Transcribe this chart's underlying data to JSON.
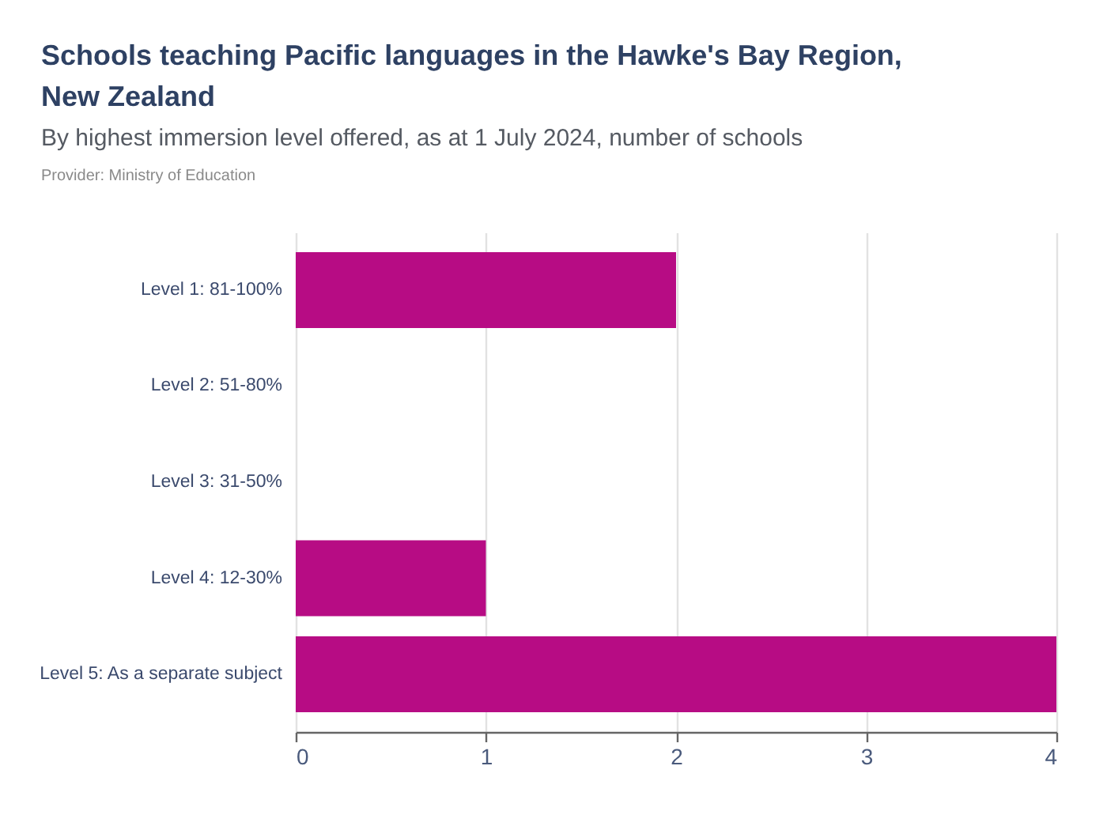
{
  "chart_data": {
    "type": "bar",
    "orientation": "horizontal",
    "title": "Schools teaching Pacific languages in the Hawke's Bay Region, New Zealand",
    "subtitle": "By highest immersion level offered, as at 1 July 2024, number of schools",
    "annotations": [
      "Provider: Ministry of Education"
    ],
    "categories": [
      "Level 1: 81-100%",
      "Level 2: 51-80%",
      "Level 3: 31-50%",
      "Level 4: 12-30%",
      "Level 5: As a separate subject"
    ],
    "values": [
      2,
      0,
      0,
      1,
      4
    ],
    "color": "#b70c84",
    "xlim": [
      0,
      4
    ],
    "xticks": [
      0,
      1,
      2,
      3,
      4
    ],
    "grid": "x"
  }
}
